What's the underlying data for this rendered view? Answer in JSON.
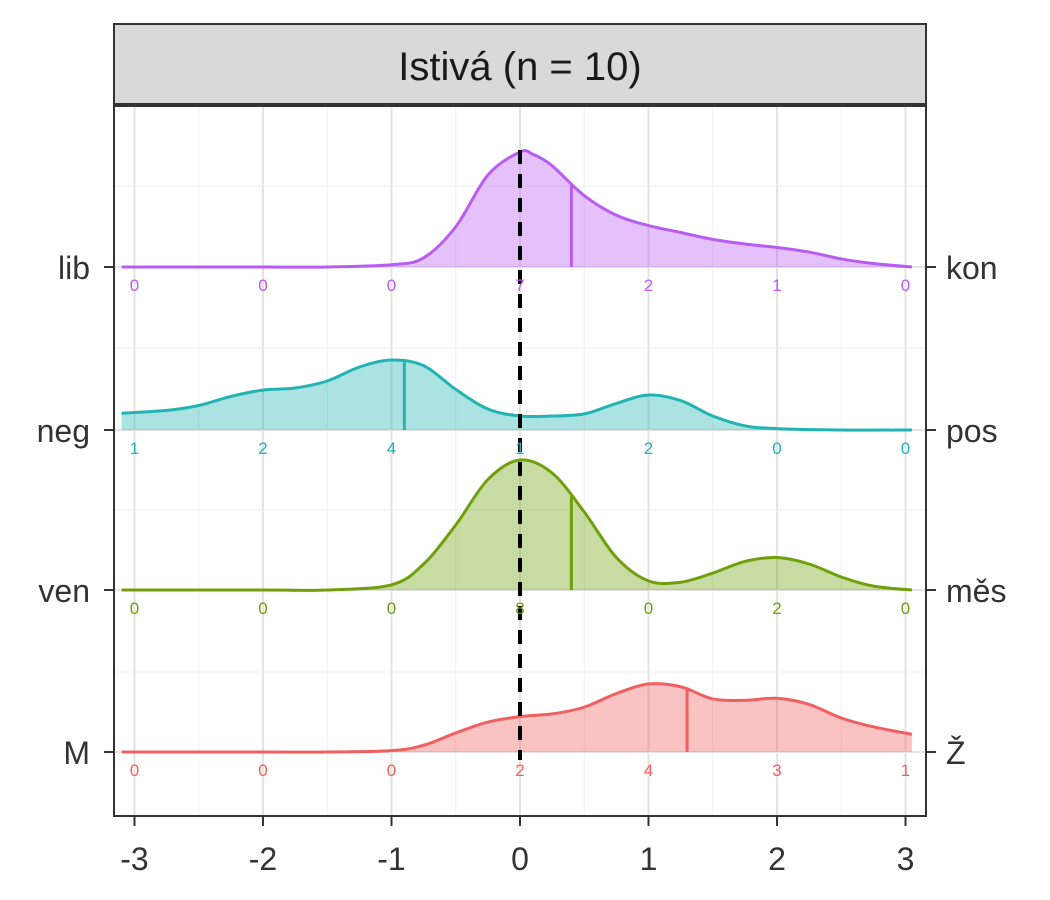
{
  "chart_data": {
    "type": "ridgeline",
    "title": "Istivá (n = 10)",
    "xlim": [
      -3.1,
      3.1
    ],
    "x_ticks": [
      -3,
      -2,
      -1,
      0,
      1,
      2,
      3
    ],
    "x_tick_labels": [
      "-3",
      "-2",
      "-1",
      "0",
      "1",
      "2",
      "3"
    ],
    "reference_line_x": 0,
    "grid": true,
    "series": [
      {
        "left_label": "lib",
        "right_label": "kon",
        "color": "#B85CF2",
        "mean": 0.4,
        "counts": [
          "0",
          "0",
          "0",
          "7",
          "2",
          "1",
          "0"
        ],
        "density_x": [
          -3.1,
          -2.5,
          -2.0,
          -1.5,
          -1.0,
          -0.75,
          -0.5,
          -0.25,
          0.0,
          0.1,
          0.25,
          0.5,
          0.75,
          1.0,
          1.25,
          1.5,
          1.75,
          2.0,
          2.25,
          2.5,
          2.75,
          3.05
        ],
        "density_y": [
          0.0,
          0.0,
          0.0,
          0.0,
          0.02,
          0.08,
          0.35,
          0.8,
          1.0,
          0.98,
          0.88,
          0.62,
          0.45,
          0.36,
          0.3,
          0.24,
          0.2,
          0.17,
          0.13,
          0.07,
          0.03,
          0.0
        ]
      },
      {
        "left_label": "neg",
        "right_label": "pos",
        "color": "#22B3B3",
        "mean": -0.9,
        "counts": [
          "1",
          "2",
          "4",
          "1",
          "2",
          "0",
          "0"
        ],
        "density_x": [
          -3.1,
          -2.75,
          -2.5,
          -2.25,
          -2.0,
          -1.75,
          -1.5,
          -1.25,
          -1.0,
          -0.75,
          -0.5,
          -0.25,
          0.0,
          0.25,
          0.5,
          0.75,
          1.0,
          1.25,
          1.5,
          1.75,
          2.0,
          2.5,
          3.05
        ],
        "density_y": [
          0.24,
          0.28,
          0.35,
          0.48,
          0.57,
          0.6,
          0.7,
          0.9,
          1.0,
          0.92,
          0.58,
          0.3,
          0.2,
          0.2,
          0.23,
          0.38,
          0.5,
          0.42,
          0.2,
          0.06,
          0.02,
          0.0,
          0.0
        ]
      },
      {
        "left_label": "ven",
        "right_label": "měs",
        "color": "#6FA00A",
        "mean": 0.4,
        "counts": [
          "0",
          "0",
          "0",
          "8",
          "0",
          "2",
          "0"
        ],
        "density_x": [
          -3.1,
          -2.0,
          -1.5,
          -1.0,
          -0.75,
          -0.5,
          -0.25,
          0.0,
          0.25,
          0.5,
          0.75,
          1.0,
          1.25,
          1.5,
          1.75,
          2.0,
          2.25,
          2.5,
          2.75,
          3.05
        ],
        "density_y": [
          0.0,
          0.0,
          0.0,
          0.04,
          0.2,
          0.5,
          0.85,
          1.0,
          0.9,
          0.6,
          0.25,
          0.07,
          0.06,
          0.13,
          0.22,
          0.25,
          0.2,
          0.1,
          0.03,
          0.0
        ]
      },
      {
        "left_label": "M",
        "right_label": "Ž",
        "color": "#F06060",
        "mean": 1.3,
        "counts": [
          "0",
          "0",
          "0",
          "2",
          "4",
          "3",
          "1"
        ],
        "density_x": [
          -3.1,
          -2.0,
          -1.5,
          -1.0,
          -0.75,
          -0.5,
          -0.25,
          0.0,
          0.25,
          0.5,
          0.75,
          1.0,
          1.25,
          1.5,
          1.75,
          2.0,
          2.25,
          2.5,
          2.75,
          3.05
        ],
        "density_y": [
          0.0,
          0.0,
          0.0,
          0.02,
          0.1,
          0.28,
          0.44,
          0.52,
          0.56,
          0.66,
          0.86,
          1.0,
          0.96,
          0.78,
          0.76,
          0.79,
          0.7,
          0.5,
          0.37,
          0.26
        ]
      }
    ]
  }
}
